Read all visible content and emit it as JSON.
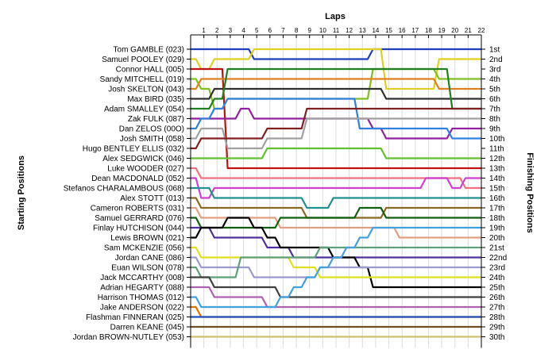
{
  "chart_data": {
    "type": "line",
    "title": "",
    "xlabel": "Laps",
    "ylabel_left": "Starting Positions",
    "ylabel_right": "Finishing Positions",
    "laps": [
      "1",
      "2",
      "3",
      "4",
      "5",
      "6",
      "7",
      "8",
      "9",
      "10",
      "11",
      "12",
      "13",
      "14",
      "15",
      "16",
      "17",
      "18",
      "19",
      "20",
      "21",
      "22"
    ],
    "starting_grid": [
      "Tom GAMBLE (023)",
      "Samuel POOLEY (029)",
      "Connor HALL (005)",
      "Sandy MITCHELL (019)",
      "Josh SKELTON (043)",
      "Max BIRD (035)",
      "Adam SMALLEY (054)",
      "Zak FULK (087)",
      "Dan ZELOS (00O)",
      "Josh SMITH (058)",
      "Hugo BENTLEY ELLIS (032)",
      "Alex SEDGWICK (046)",
      "Luke WOODER (027)",
      "Dean MACDONALD (052)",
      "Stefanos CHARALAMBOUS (068)",
      "Alex STOTT (013)",
      "Cameron ROBERTS (031)",
      "Samuel GERRARD (076)",
      "Finlay HUTCHISON (044)",
      "Lewis BROWN (021)",
      "Sam MCKENZIE (056)",
      "Jordan CANE (086)",
      "Euan WILSON (078)",
      "Jack MCCARTHY (008)",
      "Adrian HEGARTY (088)",
      "Harrison THOMAS (012)",
      "Jake ANDERSON (022)",
      "Flashman FINNERAN (025)",
      "Darren KEANE (045)",
      "Jordan BROWN-NUTLEY (053)"
    ],
    "finishing_positions": [
      "1st",
      "2nd",
      "3rd",
      "4th",
      "5th",
      "6th",
      "7th",
      "8th",
      "9th",
      "10th",
      "11th",
      "12th",
      "13th",
      "14th",
      "15th",
      "16th",
      "17th",
      "18th",
      "19th",
      "20th",
      "21st",
      "22nd",
      "23rd",
      "24th",
      "25th",
      "26th",
      "27th",
      "28th",
      "29th",
      "30th"
    ],
    "series": [
      {
        "name": "Tom GAMBLE (023)",
        "color": "#1f3fbf",
        "values": [
          1,
          1,
          1,
          1,
          1,
          2,
          2,
          2,
          2,
          2,
          2,
          2,
          2,
          2,
          1,
          1,
          1,
          1,
          1,
          1,
          1,
          1,
          1
        ]
      },
      {
        "name": "Samuel POOLEY (029)",
        "color": "#e0d020",
        "values": [
          2,
          3,
          2,
          2,
          2,
          1,
          1,
          1,
          1,
          1,
          1,
          1,
          1,
          1,
          1,
          5,
          5,
          5,
          5,
          2,
          2,
          2,
          2
        ]
      },
      {
        "name": "Connor HALL (005)",
        "color": "#c01010",
        "values": [
          3,
          3,
          3,
          13,
          13,
          13,
          13,
          13,
          13,
          13,
          13,
          13,
          13,
          13,
          13,
          13,
          13,
          13,
          13,
          13,
          13,
          13,
          13
        ]
      },
      {
        "name": "Sandy MITCHELL (019)",
        "color": "#80c020",
        "values": [
          4,
          5,
          7,
          6,
          6,
          6,
          6,
          6,
          6,
          6,
          6,
          6,
          6,
          6,
          3,
          3,
          3,
          3,
          3,
          4,
          4,
          4,
          4
        ]
      },
      {
        "name": "Josh SKELTON (043)",
        "color": "#e08020",
        "values": [
          5,
          4,
          4,
          4,
          4,
          4,
          4,
          4,
          4,
          4,
          4,
          4,
          4,
          4,
          4,
          4,
          4,
          4,
          4,
          5,
          5,
          5,
          5
        ]
      },
      {
        "name": "Max BIRD (035)",
        "color": "#303030",
        "values": [
          6,
          6,
          5,
          5,
          5,
          5,
          5,
          5,
          5,
          5,
          5,
          5,
          5,
          5,
          5,
          6,
          6,
          6,
          6,
          6,
          6,
          6,
          6
        ]
      },
      {
        "name": "Adam SMALLEY (054)",
        "color": "#208020",
        "values": [
          7,
          7,
          6,
          3,
          3,
          3,
          3,
          3,
          3,
          3,
          3,
          3,
          3,
          3,
          3,
          3,
          3,
          3,
          3,
          3,
          7,
          7,
          7
        ]
      },
      {
        "name": "Zak FULK (087)",
        "color": "#9020a0",
        "values": [
          8,
          8,
          8,
          8,
          7,
          8,
          8,
          8,
          8,
          8,
          8,
          8,
          8,
          8,
          9,
          10,
          10,
          10,
          10,
          10,
          9,
          9,
          9
        ]
      },
      {
        "name": "Dan ZELOS (00O)",
        "color": "#3080e0",
        "values": [
          9,
          8,
          7,
          6,
          6,
          6,
          6,
          6,
          6,
          6,
          6,
          6,
          6,
          9,
          9,
          9,
          9,
          9,
          9,
          9,
          10,
          10,
          10
        ]
      },
      {
        "name": "Josh SMITH (058)",
        "color": "#a0a0a0",
        "values": [
          10,
          9,
          9,
          11,
          11,
          11,
          10,
          10,
          10,
          8,
          8,
          8,
          8,
          8,
          8,
          8,
          8,
          8,
          8,
          8,
          8,
          8,
          8
        ]
      },
      {
        "name": "Hugo BENTLEY ELLIS (032)",
        "color": "#802020",
        "values": [
          11,
          10,
          10,
          10,
          10,
          10,
          9,
          9,
          9,
          7,
          7,
          7,
          7,
          7,
          7,
          7,
          7,
          7,
          7,
          7,
          7,
          7,
          7
        ]
      },
      {
        "name": "Alex SEDGWICK (046)",
        "color": "#60c030",
        "values": [
          12,
          12,
          12,
          12,
          12,
          12,
          11,
          11,
          11,
          11,
          11,
          11,
          11,
          11,
          11,
          12,
          12,
          12,
          12,
          12,
          12,
          12,
          12
        ]
      },
      {
        "name": "Luke WOODER (027)",
        "color": "#f07080",
        "values": [
          13,
          14,
          14,
          14,
          14,
          14,
          14,
          14,
          14,
          14,
          14,
          14,
          14,
          14,
          14,
          14,
          14,
          14,
          14,
          14,
          14,
          15,
          15
        ]
      },
      {
        "name": "Dean MACDONALD (052)",
        "color": "#d040d0",
        "values": [
          14,
          16,
          15,
          15,
          15,
          15,
          15,
          15,
          15,
          15,
          15,
          15,
          15,
          15,
          15,
          15,
          15,
          15,
          14,
          14,
          15,
          14,
          14
        ]
      },
      {
        "name": "Stefanos CHARALAMBOUS (068)",
        "color": "#209090",
        "values": [
          15,
          15,
          16,
          16,
          16,
          16,
          16,
          16,
          16,
          17,
          17,
          16,
          16,
          16,
          16,
          16,
          16,
          16,
          16,
          16,
          16,
          16,
          16
        ]
      },
      {
        "name": "Alex STOTT (013)",
        "color": "#8a6a20",
        "values": [
          16,
          17,
          17,
          17,
          17,
          17,
          17,
          17,
          17,
          18,
          18,
          18,
          18,
          18,
          18,
          17,
          17,
          17,
          17,
          17,
          17,
          17,
          17
        ]
      },
      {
        "name": "Cameron ROBERTS (031)",
        "color": "#e0a080",
        "values": [
          17,
          18,
          18,
          18,
          18,
          18,
          18,
          19,
          19,
          19,
          19,
          19,
          19,
          19,
          19,
          19,
          20,
          20,
          20,
          20,
          20,
          20,
          20
        ]
      },
      {
        "name": "Samuel GERRARD (076)",
        "color": "#106010",
        "values": [
          18,
          19,
          19,
          19,
          19,
          19,
          19,
          18,
          18,
          18,
          18,
          18,
          18,
          17,
          17,
          18,
          18,
          18,
          18,
          18,
          18,
          18,
          18
        ]
      },
      {
        "name": "Finlay HUTCHISON (044)",
        "color": "#5030a0",
        "values": [
          19,
          19,
          20,
          20,
          20,
          20,
          21,
          21,
          22,
          22,
          22,
          22,
          22,
          22,
          22,
          22,
          22,
          22,
          22,
          22,
          22,
          22,
          22
        ]
      },
      {
        "name": "Lewis BROWN (021)",
        "color": "#000000",
        "values": [
          20,
          19,
          19,
          18,
          18,
          19,
          20,
          21,
          21,
          21,
          21,
          22,
          22,
          23,
          25,
          25,
          25,
          25,
          25,
          25,
          25,
          25,
          25
        ]
      },
      {
        "name": "Sam MCKENZIE (056)",
        "color": "#e0e020",
        "values": [
          21,
          22,
          22,
          22,
          22,
          22,
          22,
          22,
          23,
          23,
          24,
          24,
          24,
          24,
          24,
          24,
          24,
          24,
          24,
          24,
          24,
          24,
          24
        ]
      },
      {
        "name": "Jordan CANE (086)",
        "color": "#9a9ad0",
        "values": [
          22,
          23,
          23,
          23,
          23,
          24,
          24,
          24,
          24,
          24,
          23,
          23,
          23,
          23,
          23,
          23,
          23,
          23,
          23,
          23,
          23,
          23,
          23
        ]
      },
      {
        "name": "Euan WILSON (078)",
        "color": "#5fa07a",
        "values": [
          23,
          24,
          24,
          24,
          22,
          22,
          22,
          22,
          22,
          22,
          21,
          21,
          21,
          21,
          21,
          21,
          21,
          21,
          21,
          21,
          21,
          21,
          21
        ]
      },
      {
        "name": "Jack MCCARTHY (008)",
        "color": "#404040",
        "values": [
          24,
          24,
          25,
          25,
          25,
          25,
          25,
          26,
          26,
          26,
          26,
          26,
          26,
          26,
          26,
          26,
          26,
          26,
          26,
          26,
          26,
          26,
          26
        ]
      },
      {
        "name": "Adrian HEGARTY (088)",
        "color": "#b060b0",
        "values": [
          25,
          25,
          26,
          26,
          26,
          26,
          27,
          27,
          27,
          27,
          27,
          27,
          27,
          27,
          27,
          27,
          27,
          27,
          27,
          27,
          27,
          27,
          27
        ]
      },
      {
        "name": "Harrison THOMAS (012)",
        "color": "#40a0e0",
        "values": [
          26,
          27,
          27,
          27,
          27,
          27,
          27,
          26,
          25,
          24,
          23,
          22,
          21,
          20,
          19,
          19,
          19,
          19,
          19,
          19,
          19,
          19,
          19
        ]
      },
      {
        "name": "Jake ANDERSON (022)",
        "color": "#e07000",
        "values": [
          27,
          28,
          28,
          28,
          28,
          28,
          28,
          28,
          28,
          28,
          28,
          28,
          28,
          28,
          28,
          28,
          28,
          28,
          28,
          28,
          28,
          28,
          28
        ]
      },
      {
        "name": "Flashman FINNERAN (025)",
        "color": "#2050c0",
        "values": [
          28,
          28,
          28,
          28,
          28,
          28,
          28,
          28,
          28,
          28,
          28,
          28,
          28,
          28,
          28,
          28,
          28,
          28,
          28,
          28,
          28,
          28,
          28
        ]
      },
      {
        "name": "Darren KEANE (045)",
        "color": "#705020",
        "values": [
          29,
          29,
          29,
          29,
          29,
          29,
          29,
          29,
          29,
          29,
          29,
          29,
          29,
          29,
          29,
          29,
          29,
          29,
          29,
          29,
          29,
          29,
          29
        ]
      },
      {
        "name": "Jordan BROWN-NUTLEY (053)",
        "color": "#d0c070",
        "values": [
          30,
          30,
          30,
          30,
          30,
          30,
          30,
          30,
          30,
          30,
          30,
          30,
          30,
          30,
          30,
          30,
          30,
          30,
          30,
          30,
          30,
          30,
          30
        ]
      }
    ],
    "ylim": [
      1,
      30
    ],
    "grid": true,
    "legend": "none"
  }
}
